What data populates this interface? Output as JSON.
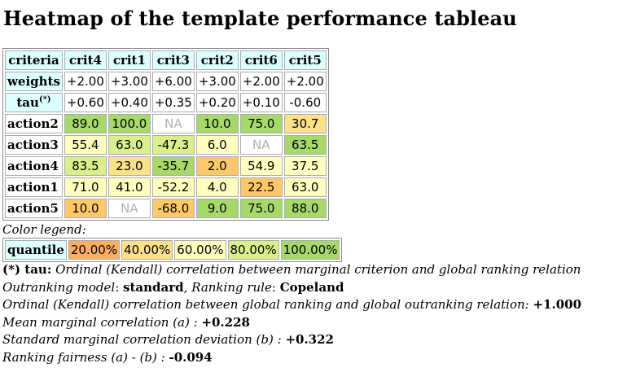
{
  "title": "Heatmap of the template performance tableau",
  "table": {
    "corner": "criteria",
    "criteria": [
      "crit4",
      "crit1",
      "crit3",
      "crit2",
      "crit6",
      "crit5"
    ],
    "weights_label": "weights",
    "weights": [
      "+2.00",
      "+3.00",
      "+6.00",
      "+3.00",
      "+2.00",
      "+2.00"
    ],
    "tau_label": "tau",
    "tau_sup": "(*)",
    "tau": [
      "+0.60",
      "+0.40",
      "+0.35",
      "+0.20",
      "+0.10",
      "-0.60"
    ],
    "rows": [
      {
        "action": "action2",
        "cells": [
          {
            "v": "89.0",
            "c": "#a6d96a"
          },
          {
            "v": "100.0",
            "c": "#a6d96a"
          },
          {
            "v": "NA",
            "c": "#ffffff"
          },
          {
            "v": "10.0",
            "c": "#a6d96a"
          },
          {
            "v": "75.0",
            "c": "#a6d96a"
          },
          {
            "v": "30.7",
            "c": "#fee08b"
          }
        ]
      },
      {
        "action": "action3",
        "cells": [
          {
            "v": "55.4",
            "c": "#ffffbf"
          },
          {
            "v": "63.0",
            "c": "#d9ef8b"
          },
          {
            "v": "-47.3",
            "c": "#d9ef8b"
          },
          {
            "v": "6.0",
            "c": "#ffffbf"
          },
          {
            "v": "NA",
            "c": "#ffffff"
          },
          {
            "v": "63.5",
            "c": "#a6d96a"
          }
        ]
      },
      {
        "action": "action4",
        "cells": [
          {
            "v": "83.5",
            "c": "#d9ef8b"
          },
          {
            "v": "23.0",
            "c": "#fee08b"
          },
          {
            "v": "-35.7",
            "c": "#a6d96a"
          },
          {
            "v": "2.0",
            "c": "#fdc86a"
          },
          {
            "v": "54.9",
            "c": "#ffffbf"
          },
          {
            "v": "37.5",
            "c": "#ffffbf"
          }
        ]
      },
      {
        "action": "action1",
        "cells": [
          {
            "v": "71.0",
            "c": "#ffffbf"
          },
          {
            "v": "41.0",
            "c": "#ffffbf"
          },
          {
            "v": "-52.2",
            "c": "#ffffbf"
          },
          {
            "v": "4.0",
            "c": "#ffffbf"
          },
          {
            "v": "22.5",
            "c": "#fdc86a"
          },
          {
            "v": "63.0",
            "c": "#ffffbf"
          }
        ]
      },
      {
        "action": "action5",
        "cells": [
          {
            "v": "10.0",
            "c": "#fdc86a"
          },
          {
            "v": "NA",
            "c": "#ffffff"
          },
          {
            "v": "-68.0",
            "c": "#fdc86a"
          },
          {
            "v": "9.0",
            "c": "#a6d96a"
          },
          {
            "v": "75.0",
            "c": "#a6d96a"
          },
          {
            "v": "88.0",
            "c": "#a6d96a"
          }
        ]
      }
    ]
  },
  "legend": {
    "title": "Color legend:",
    "label": "quantile",
    "items": [
      {
        "text": "20.00%",
        "c": "#fdae61"
      },
      {
        "text": "40.00%",
        "c": "#fee08b"
      },
      {
        "text": "60.00%",
        "c": "#ffffbf"
      },
      {
        "text": "80.00%",
        "c": "#d9ef8b"
      },
      {
        "text": "100.00%",
        "c": "#a6d96a"
      }
    ]
  },
  "notes": {
    "tau_head": "(*) tau:",
    "tau_text": " Ordinal (Kendall) correlation between marginal criterion and global ranking relation",
    "model_label": "Outranking model",
    "model_sep": ": ",
    "model_value": "standard",
    "rule_label": ", Ranking rule",
    "rule_sep": ": ",
    "rule_value": "Copeland",
    "kendall_text": "Ordinal (Kendall) correlation between global ranking and global outranking relation: ",
    "kendall_value": "+1.000",
    "mean_text": "Mean marginal correlation (a) : ",
    "mean_value": "+0.228",
    "std_text": "Standard marginal correlation deviation (b) : ",
    "std_value": "+0.322",
    "fair_text": "Ranking fairness (a) - (b) : ",
    "fair_value": "-0.094"
  }
}
